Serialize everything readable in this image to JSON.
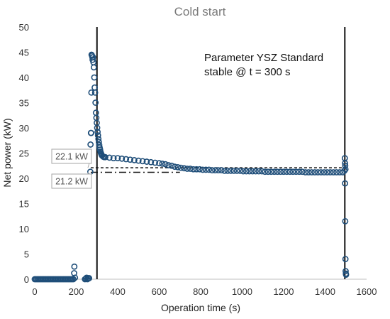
{
  "chart_data": {
    "type": "scatter",
    "title": "Cold start",
    "xlabel": "Operation time (s)",
    "ylabel": "Net power (kW)",
    "xlim": [
      0,
      1600
    ],
    "ylim": [
      0,
      50
    ],
    "xticks": [
      "0",
      "200",
      "400",
      "600",
      "800",
      "1000",
      "1200",
      "1400",
      "1600"
    ],
    "yticks": [
      "0",
      "5",
      "10",
      "15",
      "20",
      "25",
      "30",
      "35",
      "40",
      "45",
      "50"
    ],
    "grid": "none",
    "legend": "none",
    "marker": "open-circle",
    "series_color": "#1f4e79",
    "annotation_lines": [
      "Parameter YSZ Standard",
      "stable @ t = 300 s"
    ],
    "vertical_lines_x": [
      300,
      1495
    ],
    "reference_lines": [
      {
        "label": "22.1 kW",
        "value": 22.1,
        "style": "dashed",
        "x_from": 270,
        "x_to": 1500
      },
      {
        "label": "21.2 kW",
        "value": 21.2,
        "style": "dash-dot",
        "x_from": 270,
        "x_to": 700
      }
    ],
    "points": [
      [
        0,
        0
      ],
      [
        6,
        0
      ],
      [
        12,
        0
      ],
      [
        18,
        0
      ],
      [
        24,
        0
      ],
      [
        30,
        0
      ],
      [
        36,
        0
      ],
      [
        42,
        0
      ],
      [
        48,
        0
      ],
      [
        54,
        0
      ],
      [
        60,
        0
      ],
      [
        66,
        0
      ],
      [
        72,
        0
      ],
      [
        78,
        0
      ],
      [
        84,
        0
      ],
      [
        90,
        0
      ],
      [
        96,
        0
      ],
      [
        102,
        0
      ],
      [
        108,
        0
      ],
      [
        114,
        0
      ],
      [
        120,
        0
      ],
      [
        126,
        0
      ],
      [
        132,
        0
      ],
      [
        138,
        0
      ],
      [
        144,
        0
      ],
      [
        150,
        0
      ],
      [
        156,
        0
      ],
      [
        162,
        0
      ],
      [
        168,
        0
      ],
      [
        174,
        0
      ],
      [
        180,
        0
      ],
      [
        186,
        0
      ],
      [
        190,
        1.2
      ],
      [
        191,
        2.5
      ],
      [
        194,
        0.3
      ],
      [
        242,
        0
      ],
      [
        246,
        0.1
      ],
      [
        250,
        0.3
      ],
      [
        254,
        0
      ],
      [
        258,
        0.2
      ],
      [
        262,
        0.2
      ],
      [
        268,
        21.3
      ],
      [
        269,
        26.7
      ],
      [
        271,
        29
      ],
      [
        272,
        29
      ],
      [
        273,
        37
      ],
      [
        274,
        44.5
      ],
      [
        276,
        44.3
      ],
      [
        278,
        44
      ],
      [
        279,
        43.5
      ],
      [
        281,
        44
      ],
      [
        283,
        43
      ],
      [
        285,
        42
      ],
      [
        287,
        40
      ],
      [
        289,
        38
      ],
      [
        291,
        37
      ],
      [
        293,
        35
      ],
      [
        295,
        33
      ],
      [
        297,
        32
      ],
      [
        299,
        31
      ],
      [
        301,
        30
      ],
      [
        303,
        29.2
      ],
      [
        305,
        28.5
      ],
      [
        307,
        27.8
      ],
      [
        309,
        27.2
      ],
      [
        311,
        26.6
      ],
      [
        313,
        26.1
      ],
      [
        315,
        25.7
      ],
      [
        317,
        25.3
      ],
      [
        319,
        25
      ],
      [
        321,
        24.8
      ],
      [
        323,
        24.6
      ],
      [
        325,
        24.5
      ],
      [
        330,
        24.3
      ],
      [
        335,
        24.2
      ],
      [
        340,
        24.2
      ],
      [
        360,
        24.1
      ],
      [
        380,
        24.0
      ],
      [
        400,
        24.0
      ],
      [
        420,
        23.9
      ],
      [
        440,
        23.8
      ],
      [
        460,
        23.7
      ],
      [
        480,
        23.6
      ],
      [
        500,
        23.5
      ],
      [
        520,
        23.4
      ],
      [
        540,
        23.3
      ],
      [
        560,
        23.2
      ],
      [
        580,
        23.1
      ],
      [
        600,
        23.0
      ],
      [
        615,
        22.9
      ],
      [
        630,
        22.8
      ],
      [
        645,
        22.6
      ],
      [
        660,
        22.5
      ],
      [
        675,
        22.3
      ],
      [
        690,
        22.2
      ],
      [
        705,
        22.1
      ],
      [
        720,
        22.0
      ],
      [
        735,
        21.9
      ],
      [
        750,
        21.9
      ],
      [
        765,
        21.8
      ],
      [
        780,
        21.8
      ],
      [
        795,
        21.8
      ],
      [
        810,
        21.7
      ],
      [
        825,
        21.7
      ],
      [
        840,
        21.7
      ],
      [
        855,
        21.6
      ],
      [
        870,
        21.6
      ],
      [
        885,
        21.6
      ],
      [
        900,
        21.6
      ],
      [
        915,
        21.5
      ],
      [
        930,
        21.5
      ],
      [
        945,
        21.5
      ],
      [
        960,
        21.5
      ],
      [
        975,
        21.5
      ],
      [
        990,
        21.5
      ],
      [
        1005,
        21.4
      ],
      [
        1020,
        21.4
      ],
      [
        1035,
        21.4
      ],
      [
        1050,
        21.4
      ],
      [
        1065,
        21.4
      ],
      [
        1080,
        21.4
      ],
      [
        1095,
        21.4
      ],
      [
        1110,
        21.3
      ],
      [
        1125,
        21.3
      ],
      [
        1140,
        21.3
      ],
      [
        1155,
        21.3
      ],
      [
        1170,
        21.3
      ],
      [
        1185,
        21.3
      ],
      [
        1200,
        21.3
      ],
      [
        1215,
        21.3
      ],
      [
        1230,
        21.3
      ],
      [
        1245,
        21.3
      ],
      [
        1260,
        21.3
      ],
      [
        1275,
        21.3
      ],
      [
        1290,
        21.3
      ],
      [
        1305,
        21.2
      ],
      [
        1320,
        21.2
      ],
      [
        1335,
        21.2
      ],
      [
        1350,
        21.2
      ],
      [
        1365,
        21.2
      ],
      [
        1380,
        21.2
      ],
      [
        1395,
        21.2
      ],
      [
        1410,
        21.2
      ],
      [
        1425,
        21.2
      ],
      [
        1440,
        21.2
      ],
      [
        1455,
        21.2
      ],
      [
        1470,
        21.2
      ],
      [
        1485,
        21.2
      ],
      [
        1493,
        21.5
      ],
      [
        1495,
        24
      ],
      [
        1496,
        23
      ],
      [
        1497,
        22.5
      ],
      [
        1498,
        21.8
      ],
      [
        1496,
        19
      ],
      [
        1497,
        11.5
      ],
      [
        1498,
        4
      ],
      [
        1499,
        1.6
      ],
      [
        1500,
        1.1
      ],
      [
        1501,
        0.9
      ]
    ]
  }
}
